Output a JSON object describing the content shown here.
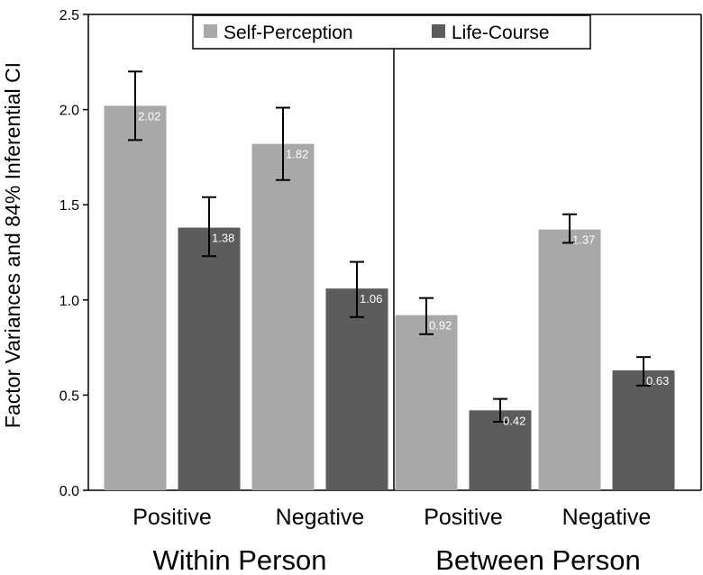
{
  "chart_data": {
    "type": "bar",
    "title": "",
    "xlabel": "",
    "ylabel": "Factor Variances and 84% Inferential CI",
    "ylim": [
      0,
      2.5
    ],
    "yticks": [
      "0.0",
      "0.5",
      "1.0",
      "1.5",
      "2.0",
      "2.5"
    ],
    "groups": [
      "Within Person",
      "Between Person"
    ],
    "categories": [
      "Positive",
      "Negative",
      "Positive",
      "Negative"
    ],
    "series": [
      {
        "name": "Self-Perception",
        "color": "#a8a8a8",
        "values": [
          2.02,
          1.82,
          0.92,
          1.37
        ],
        "labels": [
          "2.02",
          "1.82",
          "0.92",
          "1.37"
        ],
        "ci_low": [
          1.84,
          1.63,
          0.82,
          1.3
        ],
        "ci_high": [
          2.2,
          2.01,
          1.01,
          1.45
        ]
      },
      {
        "name": "Life-Course",
        "color": "#5c5c5c",
        "values": [
          1.38,
          1.06,
          0.42,
          0.63
        ],
        "labels": [
          "1.38",
          "1.06",
          "0.42",
          "0.63"
        ],
        "ci_low": [
          1.23,
          0.91,
          0.36,
          0.55
        ],
        "ci_high": [
          1.54,
          1.2,
          0.48,
          0.7
        ]
      }
    ],
    "legend": {
      "position": "top-center"
    }
  }
}
